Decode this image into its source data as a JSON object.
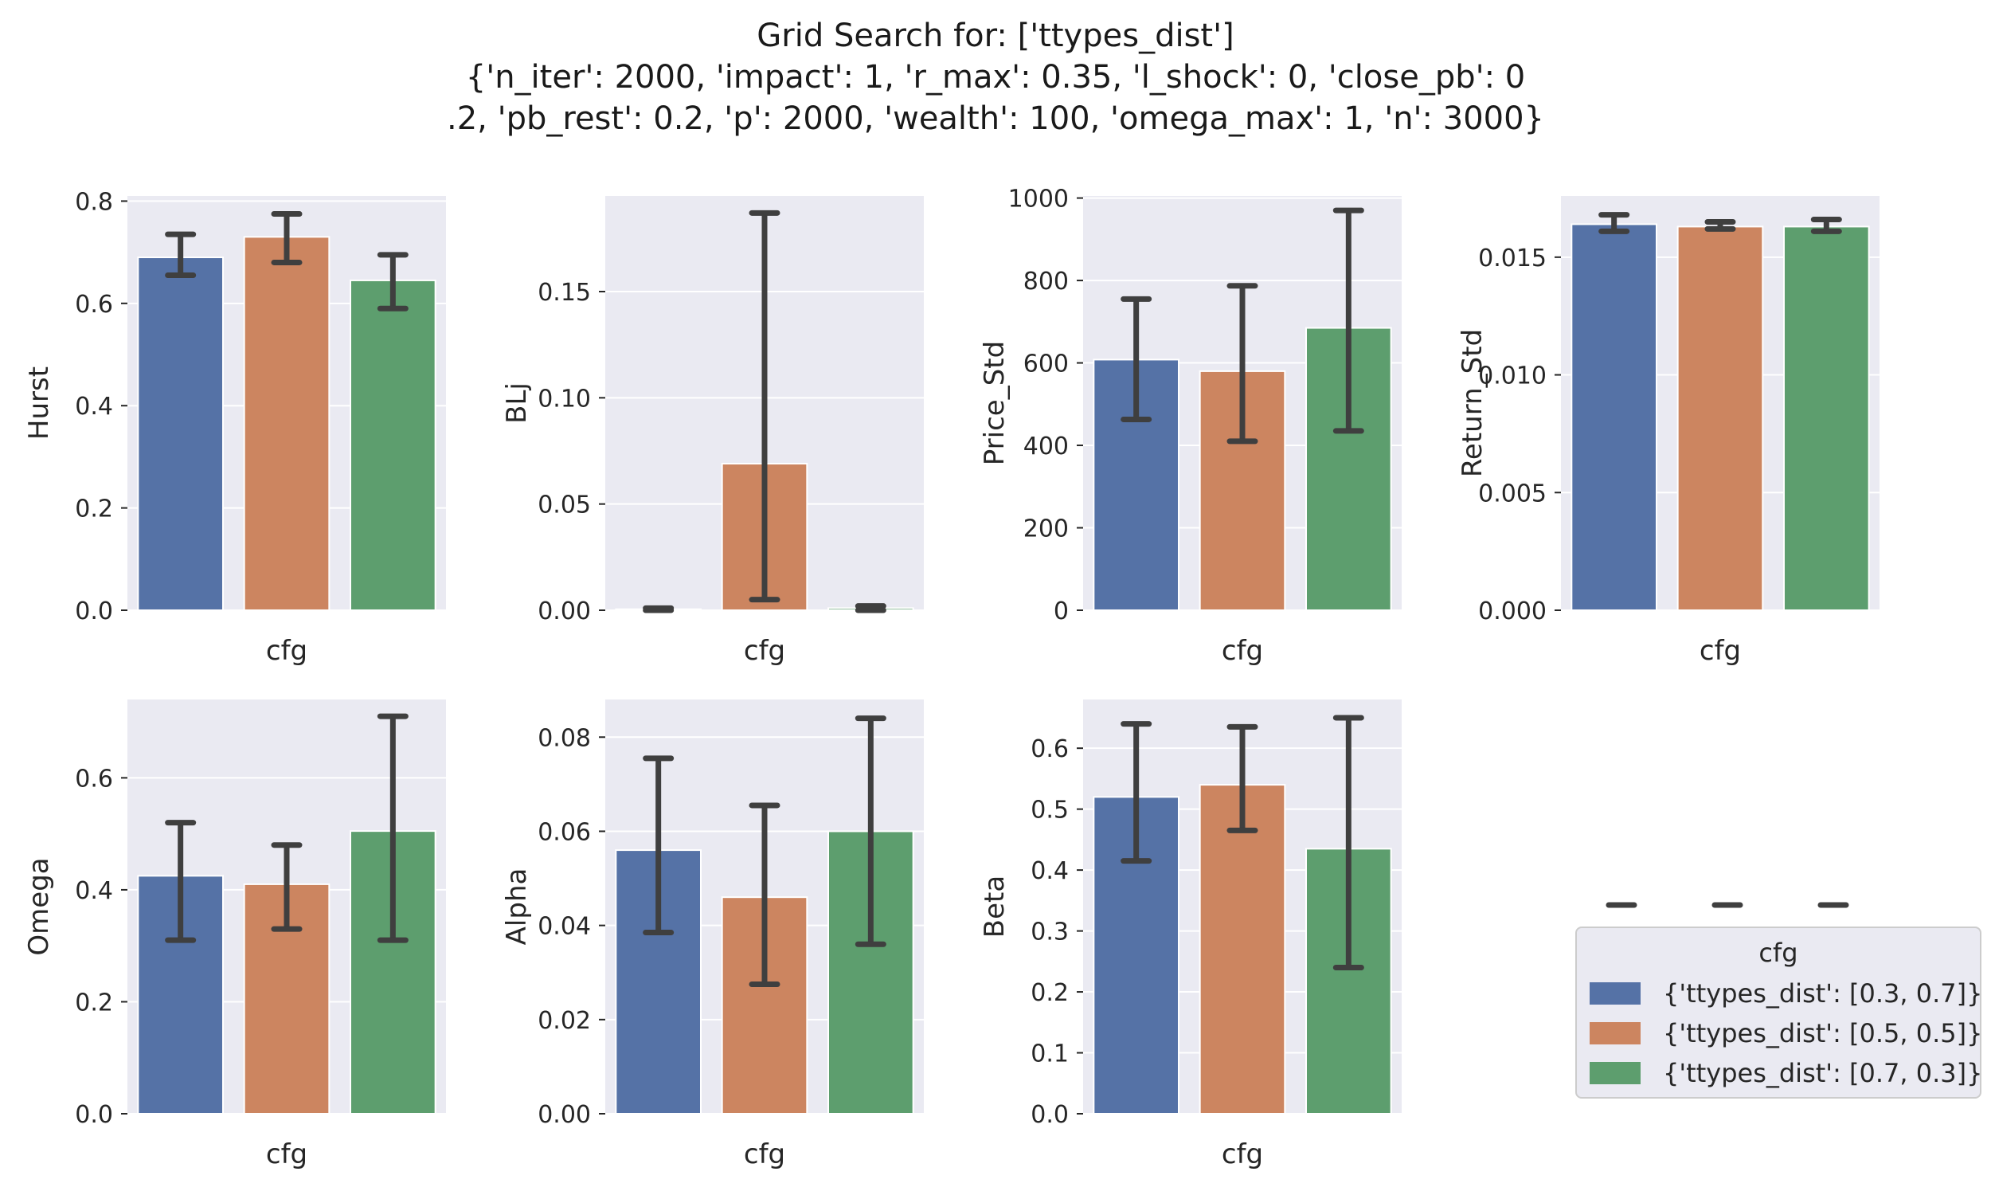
{
  "title": {
    "line1": "Grid Search for: ['ttypes_dist']",
    "line2": "{'n_iter': 2000, 'impact': 1, 'r_max': 0.35, 'l_shock': 0, 'close_pb': 0",
    "line3": ".2, 'pb_rest': 0.2, 'p': 2000, 'wealth': 100, 'omega_max': 1, 'n': 3000}"
  },
  "colors": {
    "background": "#eaeaf2",
    "grid": "#ffffff",
    "error_bar": "#3f3f3f",
    "series": [
      "#5572a6",
      "#cc8560",
      "#5d9e6e"
    ]
  },
  "legend": {
    "title": "cfg",
    "placement": "lower-right",
    "items": [
      "{'ttypes_dist': [0.3, 0.7]}",
      "{'ttypes_dist': [0.5, 0.5]}",
      "{'ttypes_dist': [0.7, 0.3]}"
    ]
  },
  "chart_data": [
    {
      "type": "bar",
      "ylabel": "Hurst",
      "xlabel": "cfg",
      "ylim": [
        0,
        0.81
      ],
      "yticks": [
        0.0,
        0.2,
        0.4,
        0.6,
        0.8
      ],
      "tick_decimals": 1,
      "series": [
        {
          "name": "{'ttypes_dist': [0.3, 0.7]}",
          "value": 0.69,
          "ci": [
            0.655,
            0.735
          ]
        },
        {
          "name": "{'ttypes_dist': [0.5, 0.5]}",
          "value": 0.73,
          "ci": [
            0.68,
            0.775
          ]
        },
        {
          "name": "{'ttypes_dist': [0.7, 0.3]}",
          "value": 0.645,
          "ci": [
            0.59,
            0.695
          ]
        }
      ]
    },
    {
      "type": "bar",
      "ylabel": "BLj",
      "xlabel": "cfg",
      "ylim": [
        0,
        0.195
      ],
      "yticks": [
        0.0,
        0.05,
        0.1,
        0.15
      ],
      "tick_decimals": 2,
      "series": [
        {
          "name": "{'ttypes_dist': [0.3, 0.7]}",
          "value": 0.0005,
          "ci": [
            0.0,
            0.001
          ]
        },
        {
          "name": "{'ttypes_dist': [0.5, 0.5]}",
          "value": 0.069,
          "ci": [
            0.005,
            0.187
          ]
        },
        {
          "name": "{'ttypes_dist': [0.7, 0.3]}",
          "value": 0.001,
          "ci": [
            0.0,
            0.002
          ]
        }
      ]
    },
    {
      "type": "bar",
      "ylabel": "Price_Std",
      "xlabel": "cfg",
      "ylim": [
        0,
        1005
      ],
      "yticks": [
        0,
        200,
        400,
        600,
        800,
        1000
      ],
      "tick_decimals": 0,
      "series": [
        {
          "name": "{'ttypes_dist': [0.3, 0.7]}",
          "value": 608,
          "ci": [
            463,
            755
          ]
        },
        {
          "name": "{'ttypes_dist': [0.5, 0.5]}",
          "value": 580,
          "ci": [
            410,
            787
          ]
        },
        {
          "name": "{'ttypes_dist': [0.7, 0.3]}",
          "value": 685,
          "ci": [
            435,
            970
          ]
        }
      ]
    },
    {
      "type": "bar",
      "ylabel": "Return_Std",
      "xlabel": "cfg",
      "ylim": [
        0,
        0.0176
      ],
      "yticks": [
        0.0,
        0.005,
        0.01,
        0.015
      ],
      "tick_decimals": 3,
      "series": [
        {
          "name": "{'ttypes_dist': [0.3, 0.7]}",
          "value": 0.0164,
          "ci": [
            0.0161,
            0.0168
          ]
        },
        {
          "name": "{'ttypes_dist': [0.5, 0.5]}",
          "value": 0.0163,
          "ci": [
            0.0162,
            0.0165
          ]
        },
        {
          "name": "{'ttypes_dist': [0.7, 0.3]}",
          "value": 0.0163,
          "ci": [
            0.0161,
            0.0166
          ]
        }
      ]
    },
    {
      "type": "bar",
      "ylabel": "Omega",
      "xlabel": "cfg",
      "ylim": [
        0,
        0.74
      ],
      "yticks": [
        0.0,
        0.2,
        0.4,
        0.6
      ],
      "tick_decimals": 1,
      "series": [
        {
          "name": "{'ttypes_dist': [0.3, 0.7]}",
          "value": 0.425,
          "ci": [
            0.31,
            0.52
          ]
        },
        {
          "name": "{'ttypes_dist': [0.5, 0.5]}",
          "value": 0.41,
          "ci": [
            0.33,
            0.48
          ]
        },
        {
          "name": "{'ttypes_dist': [0.7, 0.3]}",
          "value": 0.505,
          "ci": [
            0.31,
            0.71
          ]
        }
      ]
    },
    {
      "type": "bar",
      "ylabel": "Alpha",
      "xlabel": "cfg",
      "ylim": [
        0,
        0.088
      ],
      "yticks": [
        0.0,
        0.02,
        0.04,
        0.06,
        0.08
      ],
      "tick_decimals": 2,
      "series": [
        {
          "name": "{'ttypes_dist': [0.3, 0.7]}",
          "value": 0.056,
          "ci": [
            0.0385,
            0.0755
          ]
        },
        {
          "name": "{'ttypes_dist': [0.5, 0.5]}",
          "value": 0.046,
          "ci": [
            0.0275,
            0.0655
          ]
        },
        {
          "name": "{'ttypes_dist': [0.7, 0.3]}",
          "value": 0.06,
          "ci": [
            0.036,
            0.084
          ]
        }
      ]
    },
    {
      "type": "bar",
      "ylabel": "Beta",
      "xlabel": "cfg",
      "ylim": [
        0,
        0.68
      ],
      "yticks": [
        0.0,
        0.1,
        0.2,
        0.3,
        0.4,
        0.5,
        0.6
      ],
      "tick_decimals": 1,
      "series": [
        {
          "name": "{'ttypes_dist': [0.3, 0.7]}",
          "value": 0.52,
          "ci": [
            0.415,
            0.64
          ]
        },
        {
          "name": "{'ttypes_dist': [0.5, 0.5]}",
          "value": 0.54,
          "ci": [
            0.465,
            0.635
          ]
        },
        {
          "name": "{'ttypes_dist': [0.7, 0.3]}",
          "value": 0.435,
          "ci": [
            0.24,
            0.65
          ]
        }
      ]
    }
  ]
}
